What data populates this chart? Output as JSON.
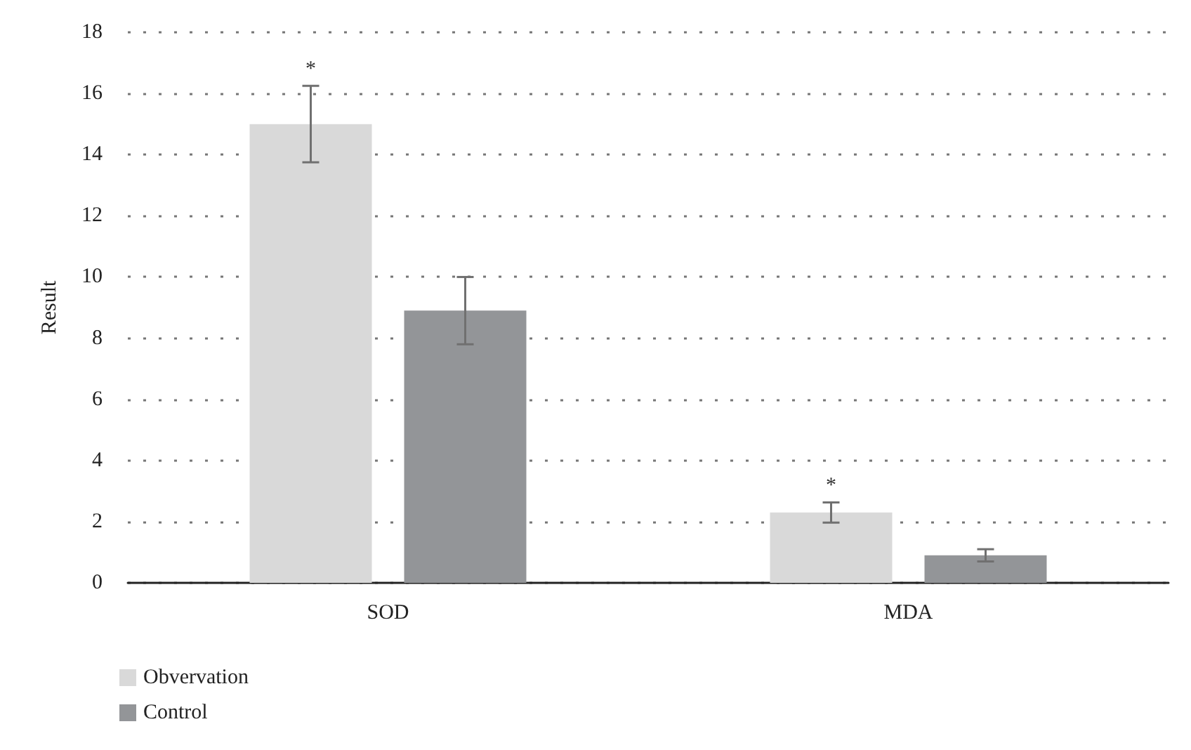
{
  "chart_data": {
    "type": "bar",
    "ylabel": "Result",
    "categories": [
      "SOD",
      "MDA"
    ],
    "series": [
      {
        "name": "Obvervation",
        "color": "#d9d9d9",
        "values": [
          15.0,
          2.3
        ],
        "errors": [
          1.25,
          0.33
        ],
        "value_labels": [
          "*",
          "*"
        ]
      },
      {
        "name": "Control",
        "color": "#939598",
        "values": [
          8.9,
          0.9
        ],
        "errors": [
          1.1,
          0.2
        ]
      }
    ],
    "ylim": [
      0,
      18
    ],
    "yticks": [
      0,
      2,
      4,
      6,
      8,
      10,
      12,
      14,
      16,
      18
    ],
    "grid": "y",
    "legend": "bottom left"
  }
}
